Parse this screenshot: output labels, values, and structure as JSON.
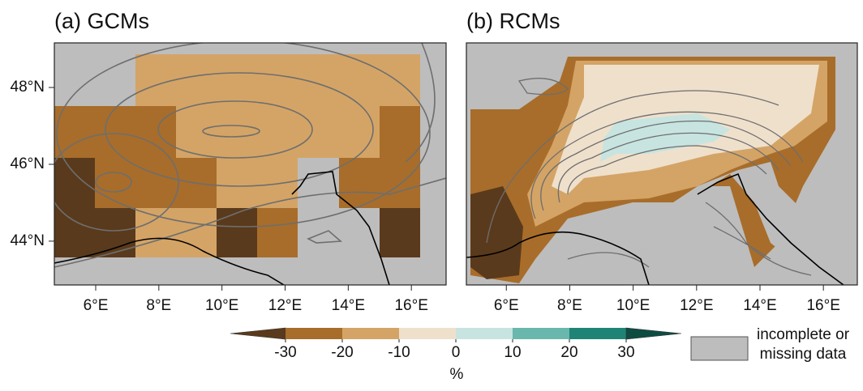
{
  "panels": [
    {
      "title": "(a) GCMs",
      "xticks": [
        {
          "value": 6,
          "label": "6°E"
        },
        {
          "value": 8,
          "label": "8°E"
        },
        {
          "value": 10,
          "label": "10°E"
        },
        {
          "value": 12,
          "label": "12°E"
        },
        {
          "value": 14,
          "label": "14°E"
        },
        {
          "value": 16,
          "label": "16°E"
        }
      ],
      "yticks": [
        {
          "value": 44,
          "label": "44°N"
        },
        {
          "value": 46,
          "label": "46°N"
        },
        {
          "value": 48,
          "label": "48°N"
        }
      ],
      "xlim": [
        4.69,
        17.1
      ],
      "ylim": [
        42.86,
        49.16
      ]
    },
    {
      "title": "(b) RCMs",
      "xticks": [
        {
          "value": 6,
          "label": "6°E"
        },
        {
          "value": 8,
          "label": "8°E"
        },
        {
          "value": 10,
          "label": "10°E"
        },
        {
          "value": 12,
          "label": "12°E"
        },
        {
          "value": 14,
          "label": "14°E"
        },
        {
          "value": 16,
          "label": "16°E"
        }
      ],
      "xlim": [
        4.74,
        17.07
      ],
      "ylim": [
        42.86,
        49.16
      ]
    }
  ],
  "colorbar": {
    "ticks": [
      -30,
      -20,
      -10,
      0,
      10,
      20,
      30
    ],
    "unit": "%",
    "colors": [
      "#5a3a1c",
      "#a86d2a",
      "#d4a466",
      "#efe0cc",
      "#c7e4e0",
      "#6ab7ad",
      "#1f8476",
      "#0e4c42"
    ]
  },
  "legend": {
    "label_lines": [
      "incomplete or",
      "missing data"
    ],
    "color": "#bdbdbd"
  }
}
